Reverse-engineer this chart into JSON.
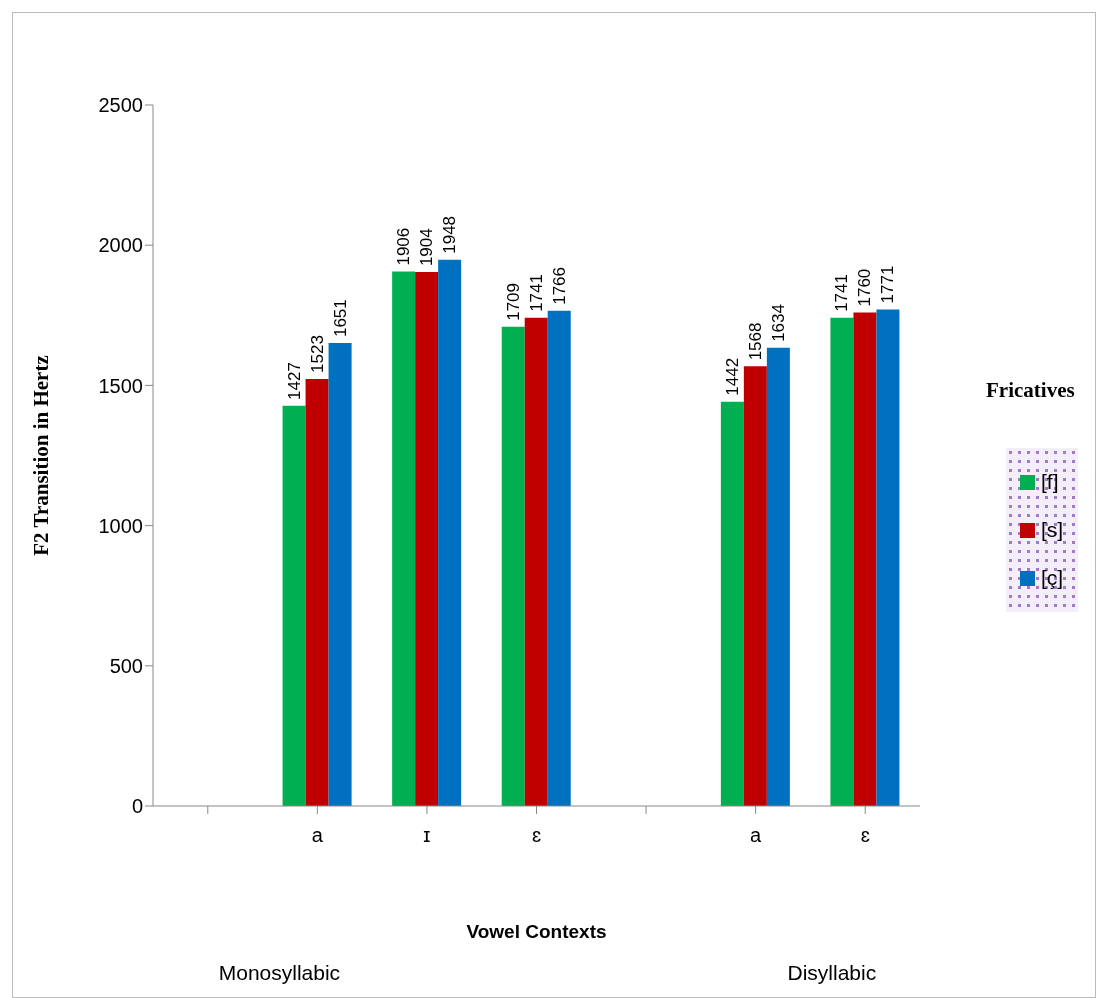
{
  "chart_data": {
    "type": "bar",
    "xlabel": "Vowel Contexts",
    "ylabel": "F2 Transition in Hertz",
    "legend_title": "Fricatives",
    "categories": [
      null,
      "a",
      "ɪ",
      "ɛ",
      null,
      "a",
      "ɛ"
    ],
    "series": [
      {
        "name": "[f]",
        "color": "#00b050",
        "values": [
          null,
          1427,
          1906,
          1709,
          null,
          1442,
          1741
        ]
      },
      {
        "name": "[s]",
        "color": "#c00000",
        "values": [
          null,
          1523,
          1904,
          1741,
          null,
          1568,
          1760
        ]
      },
      {
        "name": "[ç]",
        "color": "#0070c0",
        "values": [
          null,
          1651,
          1948,
          1766,
          null,
          1634,
          1771
        ]
      }
    ],
    "ylim": [
      0,
      2500
    ],
    "yticks": [
      0,
      500,
      1000,
      1500,
      2000,
      2500
    ],
    "grid": false,
    "legend": "right",
    "data_labels": true,
    "annotations": [
      "Monosyllabic",
      "Disyllabic"
    ]
  }
}
